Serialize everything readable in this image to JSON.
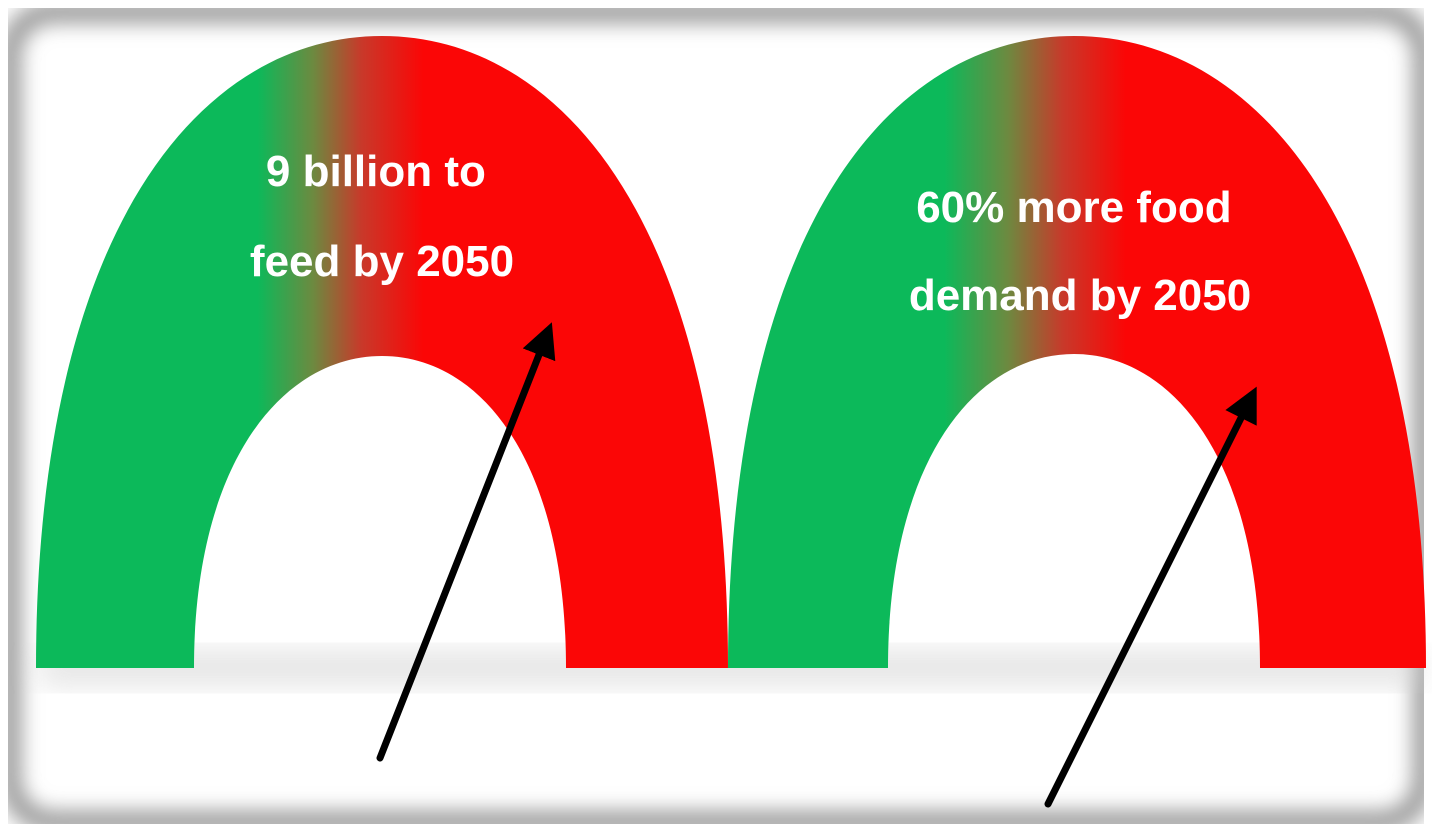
{
  "colors": {
    "background": "#ffffff",
    "frame_shadow": "#9a9a9a",
    "gauge_green": "#0cb95a",
    "gauge_red": "#fb0606",
    "gauge_transition": "#b03d2a",
    "label_text": "#ffffff",
    "arrow": "#000000"
  },
  "gauges": [
    {
      "label_line1": "9 billion to",
      "label_line2": "feed by 2050"
    },
    {
      "label_line1": "60% more food",
      "label_line2": "demand by 2050"
    }
  ],
  "icons": {
    "pointer": "arrow-up-right-icon"
  }
}
